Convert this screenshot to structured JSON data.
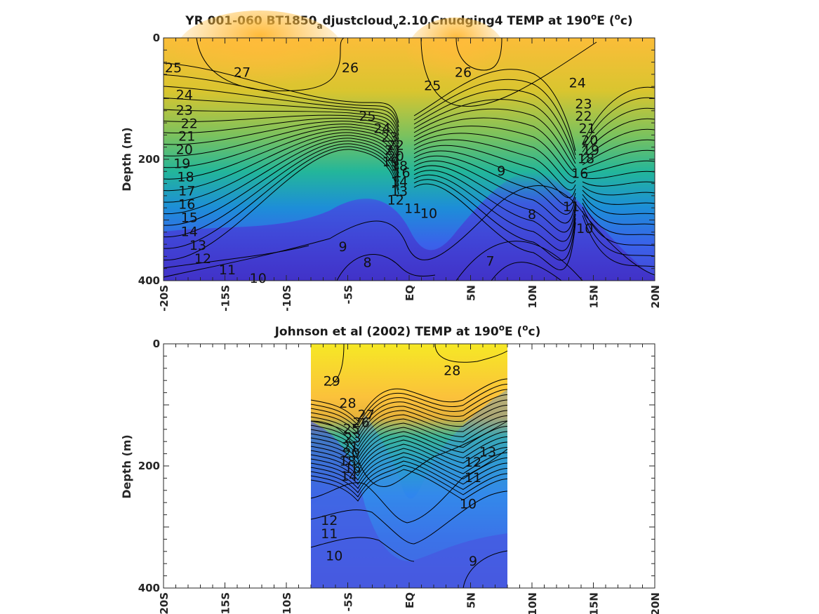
{
  "chart_data": [
    {
      "type": "heatmap",
      "title_parts": [
        "YR 001-060 BT1850",
        "a",
        "djustcloud",
        "v",
        "2.10",
        "l",
        "Cnudging4 TEMP at 190",
        "o",
        "E (",
        "o",
        "c)"
      ],
      "ylabel": "Depth (m)",
      "xlim": [
        -20,
        20
      ],
      "ylim": [
        0,
        400
      ],
      "y_reversed": true,
      "x_tick_labels": [
        "-20S",
        "-15S",
        "-10S",
        "-5S",
        "EQ",
        "5N",
        "10N",
        "15N",
        "20N"
      ],
      "y_tick_labels": [
        "0",
        "200",
        "400"
      ],
      "contour_labels": [
        {
          "text": "25",
          "x": -19.2,
          "y": 50
        },
        {
          "text": "27",
          "x": -13.6,
          "y": 58
        },
        {
          "text": "26",
          "x": -4.8,
          "y": 50
        },
        {
          "text": "25",
          "x": 1.9,
          "y": 80
        },
        {
          "text": "26",
          "x": 4.4,
          "y": 58
        },
        {
          "text": "24",
          "x": 13.7,
          "y": 75
        },
        {
          "text": "24",
          "x": -18.3,
          "y": 95
        },
        {
          "text": "23",
          "x": -18.3,
          "y": 120
        },
        {
          "text": "22",
          "x": -17.9,
          "y": 142
        },
        {
          "text": "21",
          "x": -18.1,
          "y": 163
        },
        {
          "text": "20",
          "x": -18.3,
          "y": 185
        },
        {
          "text": "19",
          "x": -18.5,
          "y": 208
        },
        {
          "text": "18",
          "x": -18.2,
          "y": 230
        },
        {
          "text": "17",
          "x": -18.1,
          "y": 253
        },
        {
          "text": "16",
          "x": -18.1,
          "y": 275
        },
        {
          "text": "15",
          "x": -17.9,
          "y": 297
        },
        {
          "text": "14",
          "x": -17.9,
          "y": 320
        },
        {
          "text": "13",
          "x": -17.2,
          "y": 343
        },
        {
          "text": "12",
          "x": -16.8,
          "y": 365
        },
        {
          "text": "11",
          "x": -14.8,
          "y": 383
        },
        {
          "text": "10",
          "x": -12.3,
          "y": 397
        },
        {
          "text": "25",
          "x": -3.4,
          "y": 130
        },
        {
          "text": "24",
          "x": -2.2,
          "y": 150
        },
        {
          "text": "23",
          "x": -1.6,
          "y": 165
        },
        {
          "text": "22",
          "x": -1.1,
          "y": 178
        },
        {
          "text": "21",
          "x": -1.3,
          "y": 186
        },
        {
          "text": "20",
          "x": -1.1,
          "y": 196
        },
        {
          "text": "19",
          "x": -1.5,
          "y": 205
        },
        {
          "text": "18",
          "x": -0.8,
          "y": 212
        },
        {
          "text": "16",
          "x": -0.6,
          "y": 223
        },
        {
          "text": "14",
          "x": -0.8,
          "y": 238
        },
        {
          "text": "13",
          "x": -0.8,
          "y": 254
        },
        {
          "text": "12",
          "x": -1.1,
          "y": 268
        },
        {
          "text": "11",
          "x": 0.3,
          "y": 282
        },
        {
          "text": "10",
          "x": 1.6,
          "y": 290
        },
        {
          "text": "9",
          "x": -5.4,
          "y": 345
        },
        {
          "text": "8",
          "x": -3.4,
          "y": 371
        },
        {
          "text": "9",
          "x": 7.5,
          "y": 220
        },
        {
          "text": "8",
          "x": 10.0,
          "y": 292
        },
        {
          "text": "7",
          "x": 6.6,
          "y": 369
        },
        {
          "text": "23",
          "x": 14.2,
          "y": 110
        },
        {
          "text": "22",
          "x": 14.2,
          "y": 130
        },
        {
          "text": "21",
          "x": 14.5,
          "y": 150
        },
        {
          "text": "20",
          "x": 14.7,
          "y": 170
        },
        {
          "text": "19",
          "x": 14.8,
          "y": 186
        },
        {
          "text": "18",
          "x": 14.4,
          "y": 200
        },
        {
          "text": "16",
          "x": 13.9,
          "y": 224
        },
        {
          "text": "11",
          "x": 13.2,
          "y": 279
        },
        {
          "text": "10",
          "x": 14.3,
          "y": 315
        }
      ]
    },
    {
      "type": "heatmap",
      "title_parts": [
        "Johnson et al (2002) TEMP at 190",
        "o",
        "E (",
        "o",
        "c)"
      ],
      "ylabel": "Depth (m)",
      "xlim": [
        -20,
        20
      ],
      "ylim": [
        0,
        400
      ],
      "y_reversed": true,
      "data_x_range": [
        -8,
        8
      ],
      "x_tick_labels": [
        "-20S",
        "-15S",
        "-10S",
        "-5S",
        "EQ",
        "5N",
        "10N",
        "15N",
        "20N"
      ],
      "y_tick_labels": [
        "0",
        "200",
        "400"
      ],
      "contour_labels": [
        {
          "text": "29",
          "x": -6.3,
          "y": 62
        },
        {
          "text": "28",
          "x": -5.0,
          "y": 98
        },
        {
          "text": "28",
          "x": 3.5,
          "y": 45
        },
        {
          "text": "27",
          "x": -3.5,
          "y": 117
        },
        {
          "text": "26",
          "x": -3.9,
          "y": 130
        },
        {
          "text": "25",
          "x": -4.7,
          "y": 140
        },
        {
          "text": "23",
          "x": -4.6,
          "y": 155
        },
        {
          "text": "21",
          "x": -4.8,
          "y": 170
        },
        {
          "text": "20",
          "x": -4.7,
          "y": 180
        },
        {
          "text": "18",
          "x": -5.0,
          "y": 193
        },
        {
          "text": "16",
          "x": -4.6,
          "y": 205
        },
        {
          "text": "14",
          "x": -4.9,
          "y": 218
        },
        {
          "text": "13",
          "x": 6.4,
          "y": 178
        },
        {
          "text": "12",
          "x": 5.2,
          "y": 195
        },
        {
          "text": "11",
          "x": 5.2,
          "y": 220
        },
        {
          "text": "10",
          "x": 4.8,
          "y": 263
        },
        {
          "text": "12",
          "x": -6.5,
          "y": 290
        },
        {
          "text": "11",
          "x": -6.5,
          "y": 312
        },
        {
          "text": "10",
          "x": -6.1,
          "y": 348
        },
        {
          "text": "9",
          "x": 5.2,
          "y": 357
        }
      ]
    }
  ]
}
